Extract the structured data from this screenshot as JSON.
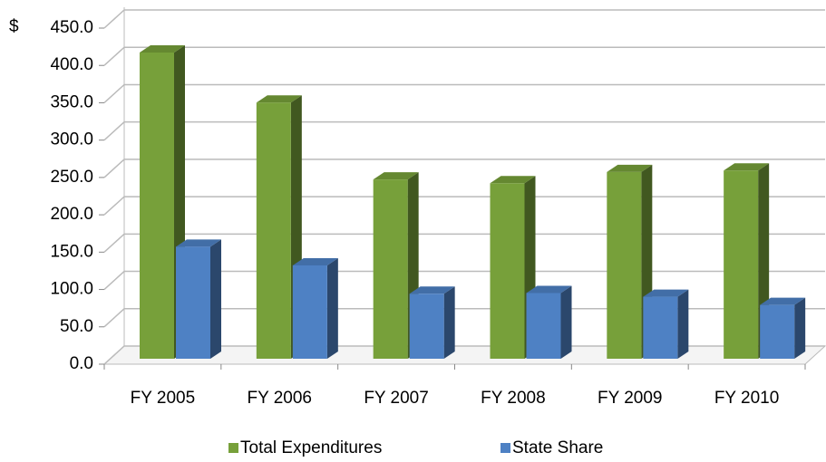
{
  "chart_data": {
    "type": "bar3d",
    "ylabel": "$",
    "categories": [
      "FY 2005",
      "FY 2006",
      "FY 2007",
      "FY 2008",
      "FY 2009",
      "FY 2010"
    ],
    "series": [
      {
        "name": "Total Expenditures",
        "color": "#77a03a",
        "values": [
          410,
          343,
          240,
          235,
          250,
          252
        ]
      },
      {
        "name": "State Share",
        "color": "#4e81c4",
        "values": [
          150,
          125,
          87,
          88,
          83,
          72
        ]
      }
    ],
    "ylim": [
      0,
      450
    ],
    "yticks": [
      {
        "value": 0,
        "label": "0.0"
      },
      {
        "value": 50,
        "label": "50.0"
      },
      {
        "value": 100,
        "label": "100.0"
      },
      {
        "value": 150,
        "label": "150.0"
      },
      {
        "value": 200,
        "label": "200.0"
      },
      {
        "value": 250,
        "label": "250.0"
      },
      {
        "value": 300,
        "label": "300.0"
      },
      {
        "value": 350,
        "label": "350.0"
      },
      {
        "value": 400,
        "label": "400.0"
      },
      {
        "value": 450,
        "label": "450.0"
      }
    ],
    "grid": true,
    "legend": "bottom"
  }
}
